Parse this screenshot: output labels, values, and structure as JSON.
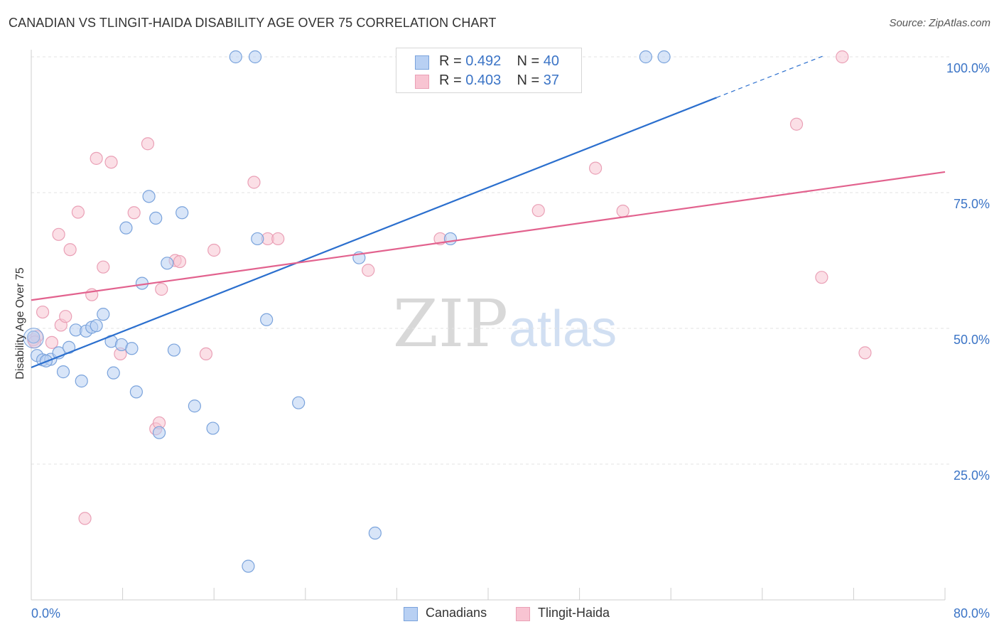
{
  "title": "CANADIAN VS TLINGIT-HAIDA DISABILITY AGE OVER 75 CORRELATION CHART",
  "source": "Source: ZipAtlas.com",
  "watermark": {
    "zip": "ZIP",
    "atlas": "atlas"
  },
  "colors": {
    "blue_fill": "#b8d0f3",
    "blue_stroke": "#7aa3dc",
    "blue_line": "#2b6fce",
    "pink_fill": "#f8c4d2",
    "pink_stroke": "#eaa0b6",
    "pink_line": "#e2628e",
    "axis_text": "#3b74c6",
    "grid": "#e3e3e3"
  },
  "legend_top": {
    "rows": [
      {
        "series": "Canadians",
        "r_label": "R = ",
        "r_value": "0.492",
        "n_label": "N = ",
        "n_value": "40"
      },
      {
        "series": "Tlingit-Haida",
        "r_label": "R = ",
        "r_value": "0.403",
        "n_label": "N = ",
        "n_value": "37"
      }
    ]
  },
  "legend_bottom": {
    "items": [
      "Canadians",
      "Tlingit-Haida"
    ]
  },
  "chart_data": {
    "type": "scatter",
    "title": "CANADIAN VS TLINGIT-HAIDA DISABILITY AGE OVER 75 CORRELATION CHART",
    "xlabel": "",
    "ylabel": "Disability Age Over 75",
    "xlim": [
      0,
      80
    ],
    "ylim": [
      0,
      105
    ],
    "x_tick_labels": {
      "left": "0.0%",
      "right": "80.0%"
    },
    "y_ticks": [
      {
        "value": 25,
        "label": "25.0%"
      },
      {
        "value": 50,
        "label": "50.0%"
      },
      {
        "value": 75,
        "label": "75.0%"
      },
      {
        "value": 100,
        "label": "100.0%"
      }
    ],
    "series": [
      {
        "name": "Canadians",
        "r": 0.492,
        "n": 40,
        "trend": {
          "x0": 0,
          "y0": 42.8,
          "x1": 60,
          "y1": 92.5,
          "dash_x1": 69.5,
          "dash_y1": 100.3
        },
        "points": [
          [
            0.2,
            48.4
          ],
          [
            0.5,
            45.0
          ],
          [
            1.0,
            44.2
          ],
          [
            1.7,
            44.3
          ],
          [
            2.4,
            45.5
          ],
          [
            2.8,
            42.0
          ],
          [
            3.3,
            46.5
          ],
          [
            3.9,
            49.7
          ],
          [
            4.4,
            40.3
          ],
          [
            4.8,
            49.5
          ],
          [
            5.3,
            50.2
          ],
          [
            5.7,
            50.5
          ],
          [
            6.3,
            52.6
          ],
          [
            7.0,
            47.6
          ],
          [
            7.2,
            41.8
          ],
          [
            7.9,
            47.0
          ],
          [
            8.3,
            68.5
          ],
          [
            8.8,
            46.3
          ],
          [
            9.2,
            38.3
          ],
          [
            9.7,
            58.3
          ],
          [
            10.3,
            74.3
          ],
          [
            10.9,
            70.3
          ],
          [
            11.2,
            30.8
          ],
          [
            11.9,
            62.0
          ],
          [
            12.5,
            46.0
          ],
          [
            13.2,
            71.3
          ],
          [
            14.3,
            35.7
          ],
          [
            15.9,
            31.6
          ],
          [
            17.9,
            100.0
          ],
          [
            19.0,
            6.2
          ],
          [
            19.6,
            100.0
          ],
          [
            19.8,
            66.5
          ],
          [
            20.6,
            51.6
          ],
          [
            23.4,
            36.3
          ],
          [
            28.7,
            63.0
          ],
          [
            30.1,
            12.3
          ],
          [
            36.7,
            66.5
          ],
          [
            53.8,
            100.0
          ],
          [
            55.4,
            100.0
          ],
          [
            1.3,
            44.0
          ]
        ]
      },
      {
        "name": "Tlingit-Haida",
        "r": 0.403,
        "n": 37,
        "trend": {
          "x0": 0,
          "y0": 55.2,
          "x1": 80,
          "y1": 78.8
        },
        "points": [
          [
            0.2,
            47.9
          ],
          [
            0.5,
            48.5
          ],
          [
            1.0,
            53.0
          ],
          [
            1.8,
            47.4
          ],
          [
            2.4,
            67.3
          ],
          [
            2.6,
            50.6
          ],
          [
            3.0,
            52.2
          ],
          [
            3.4,
            64.5
          ],
          [
            4.1,
            71.4
          ],
          [
            4.7,
            15.0
          ],
          [
            5.3,
            56.2
          ],
          [
            5.7,
            81.3
          ],
          [
            6.3,
            61.3
          ],
          [
            7.0,
            80.6
          ],
          [
            7.8,
            45.3
          ],
          [
            9.0,
            71.3
          ],
          [
            10.2,
            84.0
          ],
          [
            10.9,
            31.5
          ],
          [
            11.2,
            32.6
          ],
          [
            11.4,
            57.2
          ],
          [
            12.6,
            62.5
          ],
          [
            13.0,
            62.3
          ],
          [
            15.3,
            45.3
          ],
          [
            16.0,
            64.4
          ],
          [
            19.5,
            76.9
          ],
          [
            20.7,
            66.5
          ],
          [
            21.6,
            66.5
          ],
          [
            29.5,
            60.7
          ],
          [
            35.8,
            66.5
          ],
          [
            44.4,
            71.7
          ],
          [
            49.4,
            79.5
          ],
          [
            51.8,
            71.6
          ],
          [
            67.0,
            87.6
          ],
          [
            69.2,
            59.4
          ],
          [
            71.0,
            100.0
          ],
          [
            73.0,
            45.5
          ],
          [
            0.3,
            47.5
          ]
        ]
      }
    ]
  }
}
